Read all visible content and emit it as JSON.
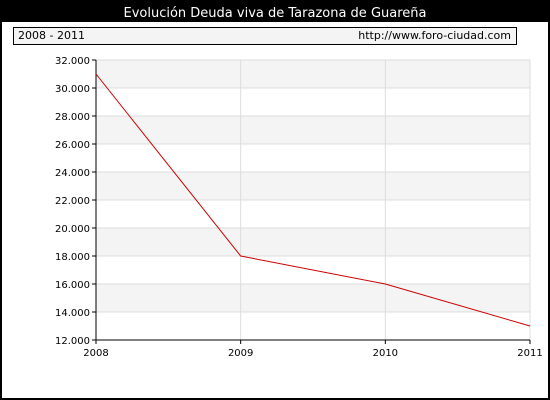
{
  "header": {
    "title": "Evolución Deuda viva de Tarazona de Guareña"
  },
  "info": {
    "period": "2008 - 2011",
    "site": "http://www.foro-ciudad.com"
  },
  "colors": {
    "line": "#cc0000",
    "band": "#f4f4f4",
    "grid": "#dddddd"
  },
  "chart_data": {
    "type": "line",
    "x": [
      "2008",
      "2009",
      "2010",
      "2011"
    ],
    "series": [
      {
        "values": [
          31000,
          18000,
          16000,
          13000
        ]
      }
    ],
    "ylim": [
      12000,
      32000
    ],
    "y_ticks": [
      "12.000",
      "14.000",
      "16.000",
      "18.000",
      "20.000",
      "22.000",
      "24.000",
      "26.000",
      "28.000",
      "30.000",
      "32.000"
    ],
    "y_tick_values": [
      12000,
      14000,
      16000,
      18000,
      20000,
      22000,
      24000,
      26000,
      28000,
      30000,
      32000
    ],
    "x_ticks": [
      "2008",
      "2009",
      "2010",
      "2011"
    ],
    "grid": true,
    "legend": "none"
  }
}
